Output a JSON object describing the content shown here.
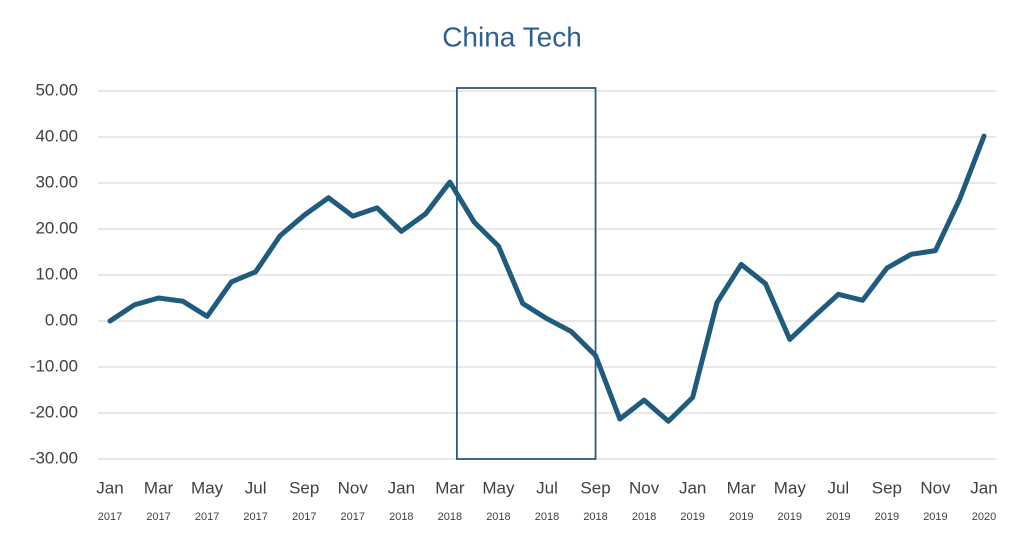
{
  "chart_data": {
    "type": "line",
    "title": "China Tech",
    "categories": [
      [
        "Jan",
        "2017"
      ],
      null,
      [
        "Mar",
        "2017"
      ],
      null,
      [
        "May",
        "2017"
      ],
      null,
      [
        "Jul",
        "2017"
      ],
      null,
      [
        "Sep",
        "2017"
      ],
      null,
      [
        "Nov",
        "2017"
      ],
      null,
      [
        "Jan",
        "2018"
      ],
      null,
      [
        "Mar",
        "2018"
      ],
      null,
      [
        "May",
        "2018"
      ],
      null,
      [
        "Jul",
        "2018"
      ],
      null,
      [
        "Sep",
        "2018"
      ],
      null,
      [
        "Nov",
        "2018"
      ],
      null,
      [
        "Jan",
        "2019"
      ],
      null,
      [
        "Mar",
        "2019"
      ],
      null,
      [
        "May",
        "2019"
      ],
      null,
      [
        "Jul",
        "2019"
      ],
      null,
      [
        "Sep",
        "2019"
      ],
      null,
      [
        "Nov",
        "2019"
      ],
      null,
      [
        "Jan",
        "2020"
      ]
    ],
    "series": [
      {
        "name": "China Tech",
        "color": "#1f5b7d",
        "values": [
          0,
          3.5,
          5,
          4.3,
          1,
          8.5,
          10.7,
          18.5,
          23,
          26.8,
          22.8,
          24.6,
          19.5,
          23.3,
          30.2,
          21.5,
          16.3,
          3.8,
          0.5,
          -2.3,
          -7.5,
          -21.3,
          -17.2,
          -21.8,
          -16.6,
          4,
          12.3,
          8.1,
          -4,
          1,
          5.8,
          4.5,
          11.5,
          14.5,
          15.3,
          26.5,
          40.2
        ]
      }
    ],
    "ylim": [
      -30,
      50
    ],
    "yticks": [
      {
        "value": -30,
        "label": "-30.00"
      },
      {
        "value": -20,
        "label": "-20.00"
      },
      {
        "value": -10,
        "label": "-10.00"
      },
      {
        "value": 0,
        "label": "0.00"
      },
      {
        "value": 10,
        "label": "10.00"
      },
      {
        "value": 20,
        "label": "20.00"
      },
      {
        "value": 30,
        "label": "30.00"
      },
      {
        "value": 40,
        "label": "40.00"
      },
      {
        "value": 50,
        "label": "50.00"
      }
    ],
    "grid": true,
    "highlight_range": [
      14,
      20
    ]
  }
}
